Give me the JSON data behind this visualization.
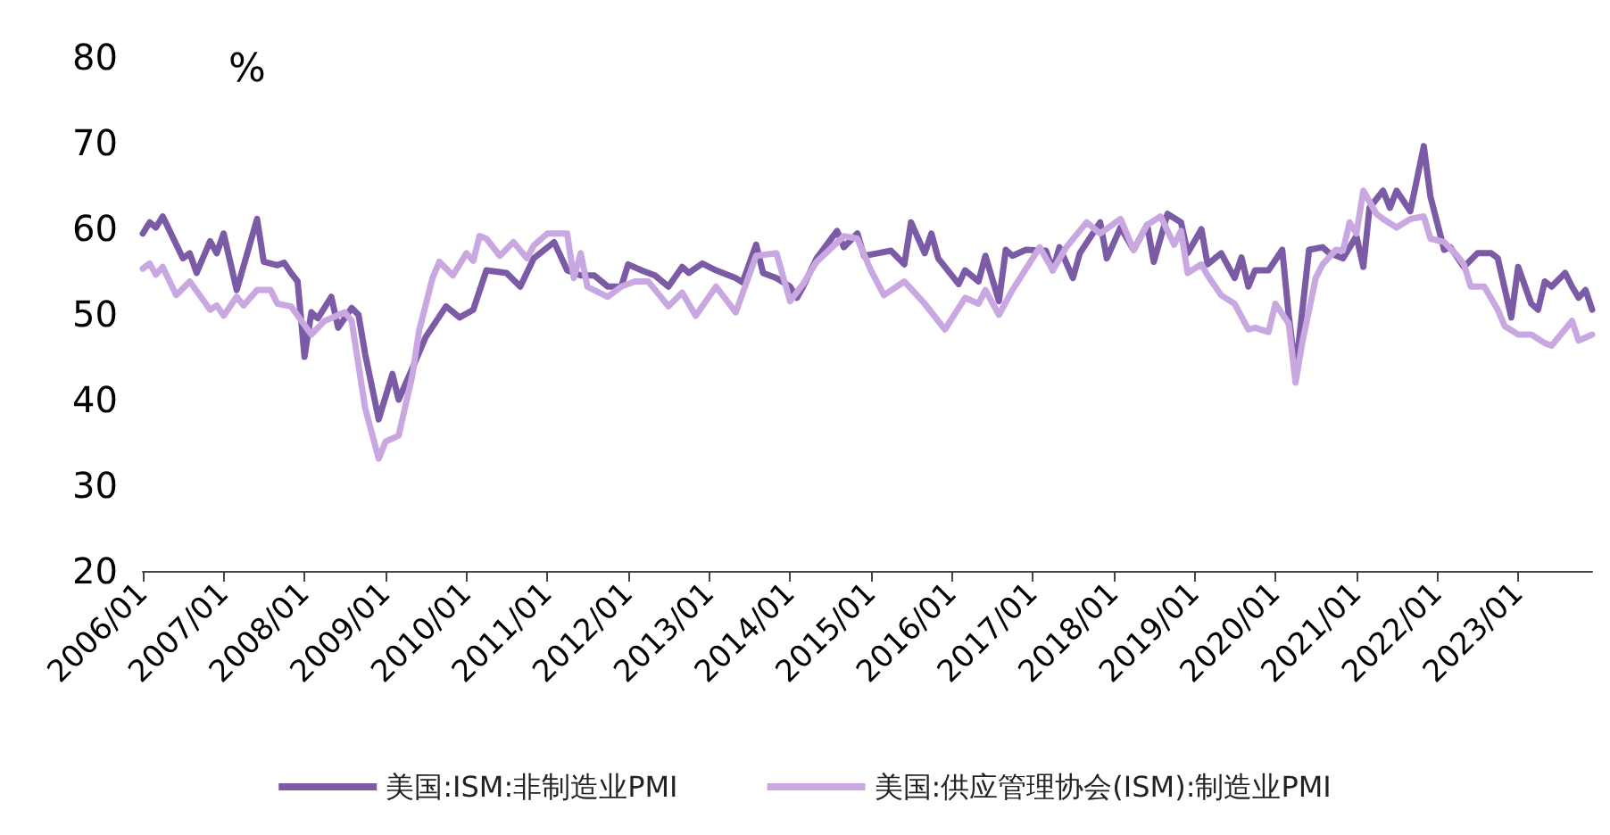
{
  "chart_data": {
    "type": "line",
    "ylabel": "%",
    "xlim": [
      "2006-01",
      "2023-12"
    ],
    "ylim": [
      20,
      80
    ],
    "yticks": [
      20,
      30,
      40,
      50,
      60,
      70,
      80
    ],
    "xticks": [
      {
        "value": "2006-01",
        "label": "2006/01"
      },
      {
        "value": "2007-01",
        "label": "2007/01"
      },
      {
        "value": "2008-01",
        "label": "2008/01"
      },
      {
        "value": "2009-01",
        "label": "2009/01"
      },
      {
        "value": "2010-01",
        "label": "2010/01"
      },
      {
        "value": "2011-01",
        "label": "2011/01"
      },
      {
        "value": "2012-01",
        "label": "2012/01"
      },
      {
        "value": "2013-01",
        "label": "2013/01"
      },
      {
        "value": "2014-01",
        "label": "2014/01"
      },
      {
        "value": "2015-01",
        "label": "2015/01"
      },
      {
        "value": "2016-01",
        "label": "2016/01"
      },
      {
        "value": "2017-01",
        "label": "2017/01"
      },
      {
        "value": "2018-01",
        "label": "2018/01"
      },
      {
        "value": "2019-01",
        "label": "2019/01"
      },
      {
        "value": "2020-01",
        "label": "2020/01"
      },
      {
        "value": "2021-01",
        "label": "2021/01"
      },
      {
        "value": "2022-01",
        "label": "2022/01"
      },
      {
        "value": "2023-01",
        "label": "2023/01"
      }
    ],
    "grid": false,
    "legend": "bottom",
    "marker": "none",
    "line_style": "solid",
    "series": [
      {
        "name": "美国:ISM:非制造业PMI",
        "color": "#7b5aa6",
        "x": [
          "2006-01",
          "2006-02",
          "2006-03",
          "2006-04",
          "2006-07",
          "2006-08",
          "2006-09",
          "2006-11",
          "2006-12",
          "2007-01",
          "2007-03",
          "2007-06",
          "2007-07",
          "2007-09",
          "2007-10",
          "2007-11",
          "2007-12",
          "2008-01",
          "2008-02",
          "2008-03",
          "2008-05",
          "2008-06",
          "2008-08",
          "2008-09",
          "2008-10",
          "2008-12",
          "2009-02",
          "2009-03",
          "2009-05",
          "2009-07",
          "2009-10",
          "2009-12",
          "2010-02",
          "2010-04",
          "2010-07",
          "2010-09",
          "2010-11",
          "2011-02",
          "2011-04",
          "2011-06",
          "2011-08",
          "2011-10",
          "2011-12",
          "2012-01",
          "2012-03",
          "2012-05",
          "2012-07",
          "2012-09",
          "2012-10",
          "2012-12",
          "2013-02",
          "2013-05",
          "2013-06",
          "2013-08",
          "2013-09",
          "2013-11",
          "2014-01",
          "2014-02",
          "2014-03",
          "2014-05",
          "2014-08",
          "2014-09",
          "2014-11",
          "2014-12",
          "2015-02",
          "2015-04",
          "2015-06",
          "2015-07",
          "2015-09",
          "2015-10",
          "2015-11",
          "2016-02",
          "2016-03",
          "2016-05",
          "2016-06",
          "2016-08",
          "2016-09",
          "2016-10",
          "2016-12",
          "2017-03",
          "2017-04",
          "2017-05",
          "2017-07",
          "2017-08",
          "2017-11",
          "2017-12",
          "2018-02",
          "2018-04",
          "2018-06",
          "2018-07",
          "2018-09",
          "2018-11",
          "2018-12",
          "2019-02",
          "2019-03",
          "2019-05",
          "2019-07",
          "2019-08",
          "2019-09",
          "2019-10",
          "2019-12",
          "2020-02",
          "2020-03",
          "2020-04",
          "2020-06",
          "2020-08",
          "2020-09",
          "2020-11",
          "2021-01",
          "2021-02",
          "2021-03",
          "2021-05",
          "2021-06",
          "2021-07",
          "2021-09",
          "2021-11",
          "2021-12",
          "2022-02",
          "2022-03",
          "2022-05",
          "2022-07",
          "2022-09",
          "2022-10",
          "2022-12",
          "2023-01",
          "2023-03",
          "2023-04",
          "2023-05",
          "2023-06",
          "2023-08",
          "2023-09",
          "2023-10",
          "2023-11",
          "2023-12"
        ],
        "values": [
          59.4,
          60.7,
          60.1,
          61.4,
          56.5,
          57.1,
          54.8,
          58.5,
          57.1,
          59.4,
          52.8,
          61.1,
          56.1,
          55.7,
          56,
          54.8,
          53.8,
          45,
          50.2,
          49.5,
          52,
          48.4,
          50.7,
          49.9,
          45.3,
          37.7,
          43,
          40,
          43.6,
          47.3,
          50.9,
          49.6,
          50.5,
          55.1,
          54.8,
          53.2,
          56.5,
          58.4,
          55.1,
          54.5,
          54.5,
          53.2,
          53.2,
          55.8,
          55.1,
          54.5,
          53.2,
          55.5,
          54.8,
          55.9,
          55.1,
          54.2,
          53.7,
          58.1,
          54.8,
          54.2,
          53.2,
          51.9,
          53.2,
          56.5,
          59.7,
          57.8,
          59.4,
          56.8,
          57.1,
          57.4,
          55.8,
          60.7,
          57.1,
          59.4,
          56.5,
          53.5,
          55.1,
          53.8,
          56.8,
          51.5,
          57.5,
          56.8,
          57.5,
          57.4,
          55.1,
          57.8,
          54.2,
          57.1,
          60.7,
          56.5,
          60.1,
          57.5,
          60.4,
          56.1,
          61.7,
          60.7,
          57.1,
          59.9,
          55.8,
          57.1,
          54.2,
          56.6,
          53.2,
          55.1,
          55.1,
          57.5,
          49.9,
          43.3,
          57.5,
          57.8,
          57.1,
          56.5,
          59.1,
          55.5,
          62.4,
          64.4,
          62.4,
          64.4,
          62,
          69.6,
          63.7,
          57.5,
          57.8,
          55.5,
          57.1,
          57.1,
          56.5,
          49.6,
          55.5,
          51.2,
          50.5,
          53.8,
          53.2,
          54.8,
          53.2,
          51.9,
          52.8,
          50.5
        ]
      },
      {
        "name": "美国:供应管理协会(ISM):制造业PMI",
        "color": "#c9a8e2",
        "x": [
          "2006-01",
          "2006-02",
          "2006-03",
          "2006-04",
          "2006-06",
          "2006-08",
          "2006-11",
          "2006-12",
          "2007-01",
          "2007-03",
          "2007-04",
          "2007-06",
          "2007-08",
          "2007-09",
          "2007-11",
          "2008-02",
          "2008-04",
          "2008-07",
          "2008-08",
          "2008-10",
          "2008-12",
          "2009-01",
          "2009-03",
          "2009-05",
          "2009-06",
          "2009-08",
          "2009-09",
          "2009-11",
          "2010-01",
          "2010-02",
          "2010-03",
          "2010-04",
          "2010-06",
          "2010-08",
          "2010-10",
          "2010-11",
          "2011-01",
          "2011-04",
          "2011-05",
          "2011-06",
          "2011-07",
          "2011-10",
          "2011-12",
          "2012-02",
          "2012-04",
          "2012-07",
          "2012-09",
          "2012-11",
          "2013-02",
          "2013-05",
          "2013-08",
          "2013-11",
          "2014-01",
          "2014-03",
          "2014-05",
          "2014-09",
          "2014-11",
          "2015-01",
          "2015-03",
          "2015-06",
          "2015-09",
          "2015-12",
          "2016-03",
          "2016-05",
          "2016-06",
          "2016-08",
          "2016-10",
          "2017-02",
          "2017-04",
          "2017-06",
          "2017-09",
          "2017-11",
          "2018-02",
          "2018-04",
          "2018-06",
          "2018-08",
          "2018-10",
          "2018-11",
          "2018-12",
          "2019-02",
          "2019-03",
          "2019-05",
          "2019-07",
          "2019-09",
          "2019-10",
          "2019-12",
          "2020-01",
          "2020-03",
          "2020-04",
          "2020-05",
          "2020-07",
          "2020-08",
          "2020-10",
          "2020-11",
          "2020-12",
          "2021-01",
          "2021-02",
          "2021-04",
          "2021-05",
          "2021-07",
          "2021-09",
          "2021-11",
          "2021-12",
          "2022-02",
          "2022-04",
          "2022-05",
          "2022-06",
          "2022-08",
          "2022-10",
          "2022-11",
          "2023-01",
          "2023-03",
          "2023-05",
          "2023-06",
          "2023-09",
          "2023-10",
          "2023-12"
        ],
        "values": [
          55.3,
          55.9,
          54.6,
          55.5,
          52.2,
          53.8,
          50.5,
          51,
          49.8,
          52,
          51,
          52.8,
          52.8,
          51.2,
          50.9,
          47.6,
          49.2,
          50.2,
          49.2,
          39,
          33.1,
          35.1,
          35.8,
          42.7,
          48,
          54.2,
          56.1,
          54.5,
          57.1,
          56.2,
          59.1,
          58.8,
          56.8,
          58.4,
          56.5,
          58,
          59.4,
          59.4,
          54.2,
          57.1,
          53.2,
          52,
          53.2,
          53.8,
          53.8,
          50.9,
          52.5,
          49.8,
          53.2,
          50.2,
          56.8,
          57.1,
          51.5,
          53.5,
          56.1,
          59.1,
          58.8,
          55.1,
          52.2,
          53.8,
          51.2,
          48.2,
          51.9,
          51.2,
          52.8,
          49.9,
          52.8,
          57.8,
          55.1,
          57.8,
          60.7,
          59.4,
          61.1,
          57.5,
          60.4,
          61.4,
          58.1,
          59.7,
          54.8,
          55.8,
          54.5,
          52.2,
          51.2,
          48.2,
          48.4,
          47.9,
          51.2,
          48.9,
          42,
          46.6,
          54.2,
          55.8,
          57.5,
          57.4,
          60.7,
          59.4,
          64.4,
          61.7,
          61.1,
          60.1,
          61.1,
          61.4,
          58.8,
          58.4,
          56.8,
          55.8,
          53.2,
          53.2,
          50.5,
          48.6,
          47.6,
          47.6,
          46.6,
          46.3,
          49.2,
          46.9,
          47.6
        ]
      }
    ]
  }
}
